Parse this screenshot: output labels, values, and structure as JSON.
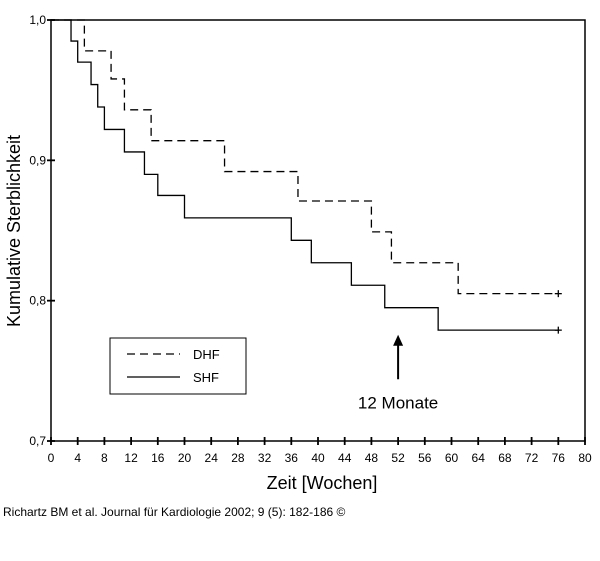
{
  "chart_data": {
    "type": "line",
    "subtype": "kaplan-meier step",
    "title": "",
    "xlabel": "Zeit [Wochen]",
    "ylabel": "Kumulative Sterblichkeit",
    "xlim": [
      0,
      80
    ],
    "ylim": [
      0.7,
      1.0
    ],
    "x_ticks": [
      0,
      4,
      8,
      12,
      16,
      20,
      24,
      28,
      32,
      36,
      40,
      44,
      48,
      52,
      56,
      60,
      64,
      68,
      72,
      76,
      80
    ],
    "y_ticks": [
      {
        "value": 0.7,
        "label": "0,7"
      },
      {
        "value": 0.8,
        "label": "0,8"
      },
      {
        "value": 0.9,
        "label": "0,9"
      },
      {
        "value": 1.0,
        "label": "1,0"
      }
    ],
    "legend": {
      "placement": "bottom-left"
    },
    "series": [
      {
        "name": "DHF",
        "style": "dashed",
        "steps": [
          [
            0,
            1.0
          ],
          [
            5,
            0.978
          ],
          [
            9,
            0.958
          ],
          [
            11,
            0.936
          ],
          [
            15,
            0.914
          ],
          [
            26,
            0.892
          ],
          [
            37,
            0.871
          ],
          [
            48,
            0.849
          ],
          [
            51,
            0.827
          ],
          [
            61,
            0.805
          ],
          [
            76,
            0.805
          ]
        ],
        "censor_marks": [
          [
            76,
            0.805
          ]
        ]
      },
      {
        "name": "SHF",
        "style": "solid",
        "steps": [
          [
            0,
            1.0
          ],
          [
            3,
            0.985
          ],
          [
            4,
            0.97
          ],
          [
            6,
            0.954
          ],
          [
            7,
            0.938
          ],
          [
            8,
            0.922
          ],
          [
            11,
            0.906
          ],
          [
            14,
            0.89
          ],
          [
            16,
            0.875
          ],
          [
            20,
            0.859
          ],
          [
            36,
            0.843
          ],
          [
            39,
            0.827
          ],
          [
            45,
            0.811
          ],
          [
            50,
            0.795
          ],
          [
            58,
            0.779
          ],
          [
            76,
            0.779
          ]
        ],
        "censor_marks": [
          [
            76,
            0.779
          ]
        ]
      }
    ],
    "annotations": [
      {
        "text": "12 Monate",
        "arrow_x": 52,
        "arrow_from_y": 0.744,
        "arrow_to_y": 0.775
      }
    ]
  },
  "caption": "Richartz BM et al. Journal für Kardiologie 2002; 9 (5): 182-186 ©"
}
